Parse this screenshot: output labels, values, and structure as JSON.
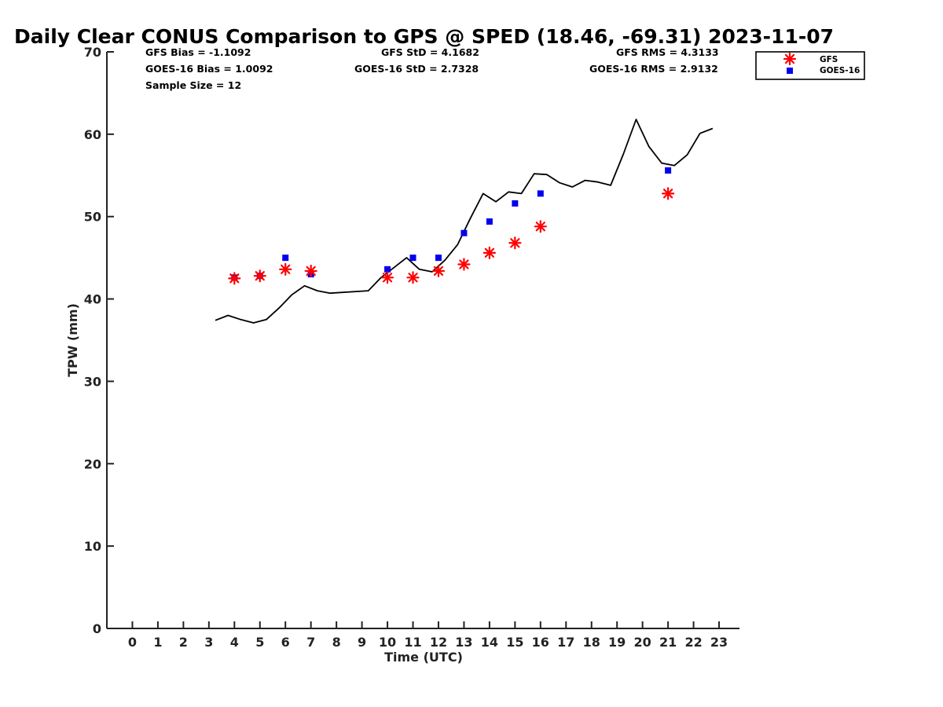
{
  "chart_data": {
    "type": "scatter",
    "title": "Daily Clear CONUS Comparison to GPS @ SPED (18.46, -69.31) 2023-11-07",
    "xlabel": "Time (UTC)",
    "ylabel": "TPW (mm)",
    "xlim": [
      -1,
      23.8
    ],
    "ylim": [
      0,
      70
    ],
    "xticks": [
      "0",
      "1",
      "2",
      "3",
      "4",
      "5",
      "6",
      "7",
      "8",
      "9",
      "10",
      "11",
      "12",
      "13",
      "14",
      "15",
      "16",
      "17",
      "18",
      "19",
      "20",
      "21",
      "22",
      "23"
    ],
    "yticks": [
      "0",
      "10",
      "20",
      "30",
      "40",
      "50",
      "60",
      "70"
    ],
    "grid": false,
    "legend_position": "top-right (outside plot)",
    "stats": {
      "gfs_bias": "GFS Bias = -1.1092",
      "goes_bias": "GOES-16 Bias = 1.0092",
      "sample_size": "Sample Size = 12",
      "gfs_std": "GFS StD = 4.1682",
      "goes_std": "GOES-16 StD = 2.7328",
      "gfs_rms": "GFS RMS = 4.3133",
      "goes_rms": "GOES-16 RMS = 2.9132"
    },
    "series": [
      {
        "name": "GFS",
        "marker": "asterisk",
        "color": "#ff0000",
        "x": [
          4,
          5,
          6,
          7,
          10,
          11,
          12,
          13,
          14,
          15,
          16,
          21
        ],
        "y": [
          42.5,
          42.8,
          43.6,
          43.4,
          42.6,
          42.6,
          43.4,
          44.2,
          45.6,
          46.8,
          48.8,
          52.8
        ]
      },
      {
        "name": "GOES-16",
        "marker": "square",
        "color": "#0000ee",
        "x": [
          4,
          5,
          6,
          7,
          10,
          11,
          12,
          13,
          14,
          15,
          16,
          21
        ],
        "y": [
          42.6,
          42.8,
          45.0,
          43.0,
          43.6,
          45.0,
          45.0,
          48.0,
          49.4,
          51.6,
          52.8,
          55.6
        ]
      },
      {
        "type": "line",
        "color": "#000000",
        "x": [
          3.25,
          3.75,
          4.25,
          4.75,
          5.25,
          5.75,
          6.25,
          6.75,
          7.25,
          7.75,
          9.25,
          9.75,
          10.25,
          10.75,
          11.25,
          11.75,
          12.25,
          12.75,
          13.25,
          13.75,
          14.25,
          14.75,
          15.25,
          15.75,
          16.25,
          16.75,
          17.25,
          17.75,
          18.25,
          18.75,
          19.25,
          19.75,
          20.25,
          20.75,
          21.25,
          21.75,
          22.25,
          22.75
        ],
        "y": [
          37.4,
          38.0,
          37.5,
          37.1,
          37.5,
          38.9,
          40.5,
          41.6,
          41.0,
          40.7,
          41.0,
          42.6,
          43.8,
          45.0,
          43.6,
          43.3,
          44.7,
          46.6,
          49.8,
          52.8,
          51.8,
          53.0,
          52.8,
          55.2,
          55.1,
          54.1,
          53.6,
          54.4,
          54.2,
          53.8,
          57.6,
          61.8,
          58.5,
          56.5,
          56.2,
          57.5,
          60.1,
          60.7
        ]
      }
    ]
  }
}
